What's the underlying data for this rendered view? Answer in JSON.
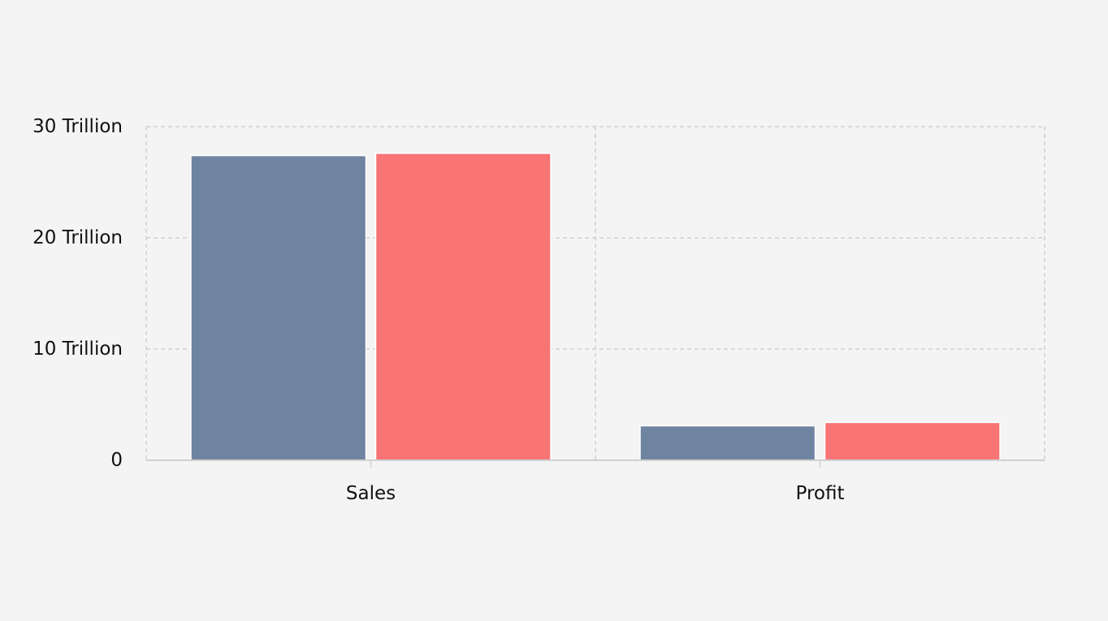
{
  "chart_data": {
    "type": "bar",
    "categories": [
      "Sales",
      "Profit"
    ],
    "series": [
      {
        "color": "#6e84a0",
        "values": [
          27.4,
          3.1
        ]
      },
      {
        "color": "#f87475",
        "values": [
          27.6,
          3.4
        ]
      }
    ],
    "ylim": [
      0,
      30
    ],
    "yticks": [
      0,
      10,
      20,
      30
    ],
    "ytick_labels": [
      "0",
      "10 Trillion",
      "20 Trillion",
      "30 Trillion"
    ],
    "unit": "Trillion",
    "grid": true,
    "legend": "none",
    "title": "",
    "xlabel": "",
    "ylabel": ""
  },
  "colors": {
    "background": "#f4f4f4",
    "grid": "#d0d0d0"
  }
}
